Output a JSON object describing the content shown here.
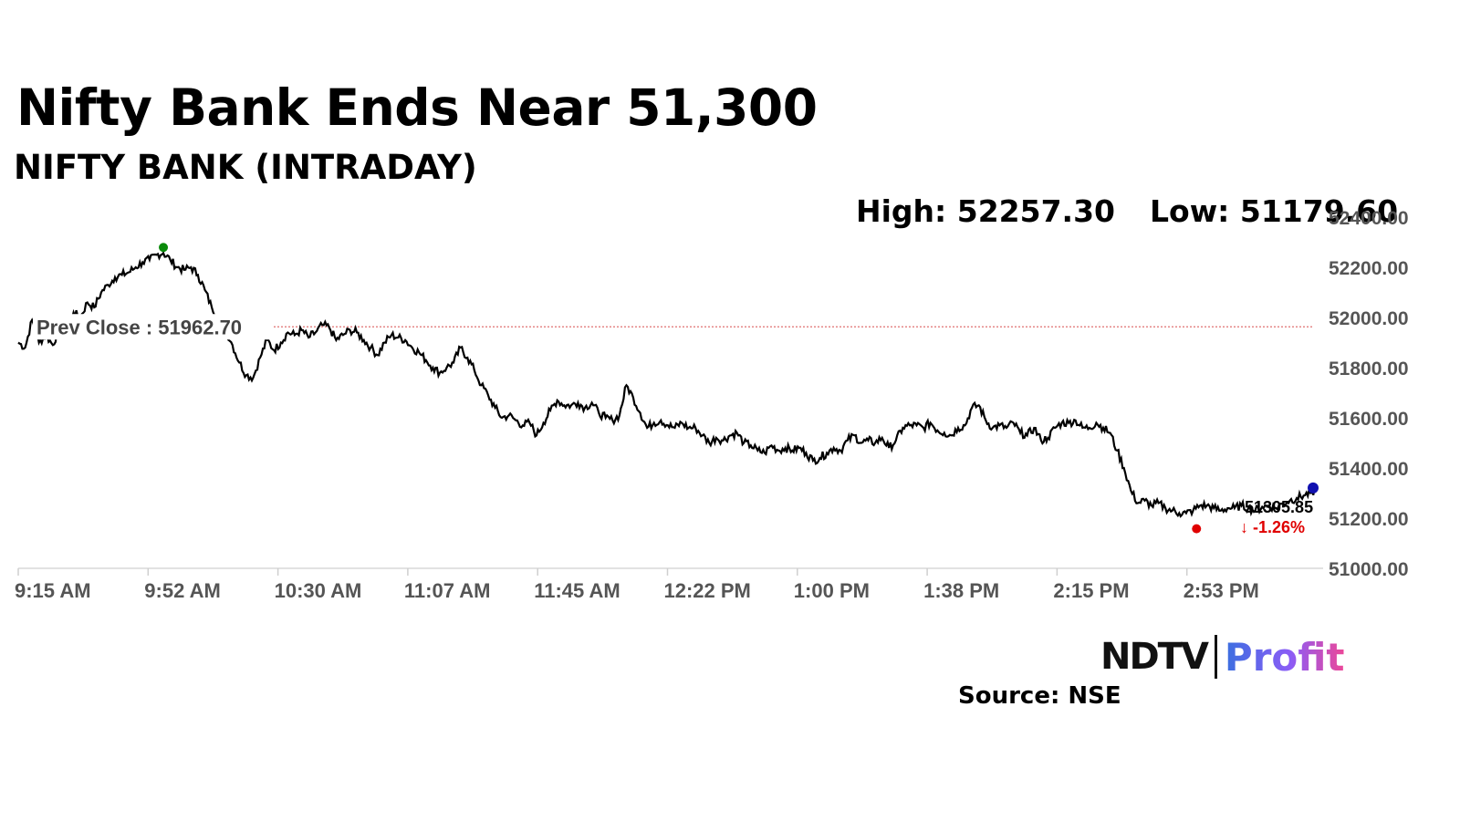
{
  "header": {
    "title": "Nifty Bank Ends Near 51,300",
    "subtitle": "NIFTY BANK (INTRADAY)",
    "high_text": "High: 52257.30",
    "low_text": "Low: 51179.60"
  },
  "footer": {
    "logo_ndtv": "NDTV",
    "logo_profit": "Profit",
    "source": "Source: NSE"
  },
  "chart_data": {
    "type": "line",
    "title": "Nifty Bank Ends Near 51,300",
    "subtitle": "NIFTY BANK (INTRADAY)",
    "xlabel": "",
    "ylabel": "",
    "x_ticks": [
      "9:15 AM",
      "9:52 AM",
      "10:30 AM",
      "11:07 AM",
      "11:45 AM",
      "12:22 PM",
      "1:00 PM",
      "1:38 PM",
      "2:15 PM",
      "2:53 PM"
    ],
    "x_start_minutes": 555,
    "x_end_minutes": 930,
    "y_ticks": [
      "51000.00",
      "51200.00",
      "51400.00",
      "51600.00",
      "51800.00",
      "52000.00",
      "52200.00",
      "52400.00"
    ],
    "ylim": [
      51000,
      52400
    ],
    "grid": false,
    "legend": "none",
    "prev_close_value": 51962.7,
    "prev_close_label": "Prev Close : 51962.70",
    "high": 52257.3,
    "low": 51179.6,
    "last_value_label": "51305.85",
    "change_label": "-1.26%",
    "change_arrow": "↓",
    "colors": {
      "line": "#000000",
      "prev_close": "#e07070",
      "high_marker": "#0a8a0a",
      "low_marker": "#e00000",
      "last_marker": "#1010b0",
      "change": "#e00000"
    },
    "series": [
      {
        "values": [
          [
            555,
            51900
          ],
          [
            557,
            51880
          ],
          [
            559,
            51990
          ],
          [
            561,
            51900
          ],
          [
            563,
            51930
          ],
          [
            565,
            51890
          ],
          [
            567,
            51960
          ],
          [
            569,
            51950
          ],
          [
            571,
            52020
          ],
          [
            573,
            52000
          ],
          [
            575,
            52060
          ],
          [
            577,
            52040
          ],
          [
            579,
            52100
          ],
          [
            581,
            52130
          ],
          [
            583,
            52160
          ],
          [
            585,
            52170
          ],
          [
            587,
            52180
          ],
          [
            589,
            52200
          ],
          [
            591,
            52220
          ],
          [
            593,
            52230
          ],
          [
            595,
            52250
          ],
          [
            597,
            52257
          ],
          [
            599,
            52230
          ],
          [
            601,
            52200
          ],
          [
            603,
            52190
          ],
          [
            605,
            52200
          ],
          [
            607,
            52170
          ],
          [
            609,
            52110
          ],
          [
            611,
            52040
          ],
          [
            613,
            52000
          ],
          [
            615,
            51950
          ],
          [
            617,
            51890
          ],
          [
            619,
            51820
          ],
          [
            621,
            51770
          ],
          [
            623,
            51760
          ],
          [
            625,
            51840
          ],
          [
            627,
            51910
          ],
          [
            629,
            51870
          ],
          [
            631,
            51900
          ],
          [
            633,
            51940
          ],
          [
            635,
            51930
          ],
          [
            637,
            51950
          ],
          [
            639,
            51920
          ],
          [
            641,
            51940
          ],
          [
            643,
            51970
          ],
          [
            645,
            51960
          ],
          [
            647,
            51910
          ],
          [
            649,
            51930
          ],
          [
            651,
            51950
          ],
          [
            653,
            51940
          ],
          [
            655,
            51910
          ],
          [
            657,
            51880
          ],
          [
            659,
            51850
          ],
          [
            661,
            51900
          ],
          [
            663,
            51930
          ],
          [
            665,
            51920
          ],
          [
            667,
            51910
          ],
          [
            669,
            51880
          ],
          [
            671,
            51860
          ],
          [
            673,
            51830
          ],
          [
            675,
            51800
          ],
          [
            677,
            51780
          ],
          [
            679,
            51800
          ],
          [
            681,
            51820
          ],
          [
            683,
            51880
          ],
          [
            685,
            51840
          ],
          [
            687,
            51790
          ],
          [
            689,
            51730
          ],
          [
            691,
            51690
          ],
          [
            693,
            51640
          ],
          [
            695,
            51600
          ],
          [
            697,
            51610
          ],
          [
            699,
            51590
          ],
          [
            701,
            51570
          ],
          [
            703,
            51580
          ],
          [
            705,
            51530
          ],
          [
            707,
            51580
          ],
          [
            709,
            51630
          ],
          [
            711,
            51670
          ],
          [
            713,
            51650
          ],
          [
            715,
            51650
          ],
          [
            717,
            51660
          ],
          [
            719,
            51640
          ],
          [
            721,
            51660
          ],
          [
            723,
            51620
          ],
          [
            725,
            51600
          ],
          [
            727,
            51590
          ],
          [
            729,
            51610
          ],
          [
            731,
            51730
          ],
          [
            733,
            51680
          ],
          [
            735,
            51620
          ],
          [
            737,
            51560
          ],
          [
            739,
            51580
          ],
          [
            741,
            51590
          ],
          [
            743,
            51570
          ],
          [
            745,
            51560
          ],
          [
            747,
            51580
          ],
          [
            749,
            51560
          ],
          [
            751,
            51560
          ],
          [
            753,
            51530
          ],
          [
            755,
            51500
          ],
          [
            757,
            51520
          ],
          [
            759,
            51510
          ],
          [
            761,
            51530
          ],
          [
            763,
            51540
          ],
          [
            765,
            51500
          ],
          [
            767,
            51490
          ],
          [
            769,
            51470
          ],
          [
            771,
            51460
          ],
          [
            773,
            51490
          ],
          [
            775,
            51470
          ],
          [
            777,
            51480
          ],
          [
            779,
            51470
          ],
          [
            781,
            51480
          ],
          [
            783,
            51460
          ],
          [
            785,
            51430
          ],
          [
            787,
            51440
          ],
          [
            789,
            51460
          ],
          [
            791,
            51480
          ],
          [
            793,
            51470
          ],
          [
            795,
            51510
          ],
          [
            797,
            51530
          ],
          [
            799,
            51500
          ],
          [
            801,
            51510
          ],
          [
            803,
            51500
          ],
          [
            805,
            51520
          ],
          [
            807,
            51480
          ],
          [
            809,
            51510
          ],
          [
            811,
            51560
          ],
          [
            813,
            51570
          ],
          [
            815,
            51570
          ],
          [
            817,
            51560
          ],
          [
            819,
            51580
          ],
          [
            821,
            51550
          ],
          [
            823,
            51540
          ],
          [
            825,
            51530
          ],
          [
            827,
            51560
          ],
          [
            829,
            51570
          ],
          [
            831,
            51640
          ],
          [
            833,
            51650
          ],
          [
            835,
            51590
          ],
          [
            837,
            51560
          ],
          [
            839,
            51570
          ],
          [
            841,
            51560
          ],
          [
            843,
            51580
          ],
          [
            845,
            51540
          ],
          [
            847,
            51530
          ],
          [
            849,
            51560
          ],
          [
            851,
            51510
          ],
          [
            853,
            51520
          ],
          [
            855,
            51560
          ],
          [
            857,
            51580
          ],
          [
            859,
            51580
          ],
          [
            861,
            51590
          ],
          [
            863,
            51560
          ],
          [
            865,
            51560
          ],
          [
            867,
            51580
          ],
          [
            869,
            51560
          ],
          [
            871,
            51540
          ],
          [
            873,
            51470
          ],
          [
            875,
            51400
          ],
          [
            877,
            51310
          ],
          [
            879,
            51260
          ],
          [
            881,
            51270
          ],
          [
            883,
            51250
          ],
          [
            885,
            51260
          ],
          [
            887,
            51240
          ],
          [
            889,
            51230
          ],
          [
            891,
            51220
          ],
          [
            893,
            51220
          ],
          [
            895,
            51230
          ],
          [
            897,
            51250
          ],
          [
            899,
            51250
          ],
          [
            901,
            51240
          ],
          [
            903,
            51230
          ],
          [
            905,
            51240
          ],
          [
            907,
            51240
          ],
          [
            909,
            51250
          ],
          [
            911,
            51240
          ],
          [
            913,
            51230
          ],
          [
            915,
            51245
          ],
          [
            917,
            51250
          ],
          [
            919,
            51240
          ],
          [
            921,
            51260
          ],
          [
            923,
            51270
          ],
          [
            925,
            51280
          ],
          [
            927,
            51290
          ],
          [
            929,
            51300
          ],
          [
            930,
            51305.85
          ]
        ]
      }
    ]
  }
}
